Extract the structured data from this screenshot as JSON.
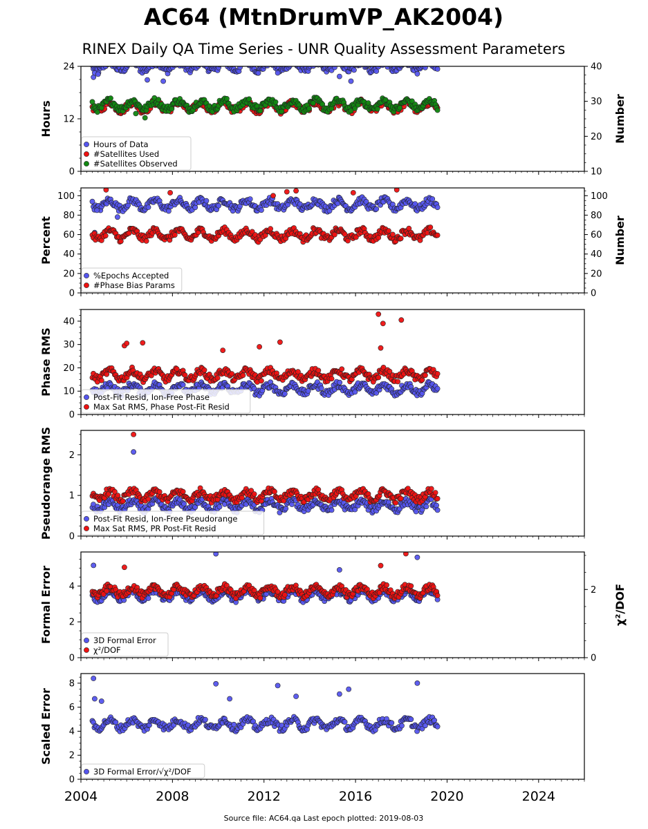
{
  "title": "AC64 (MtnDrumVP_AK2004)",
  "subtitle": "RINEX Daily QA Time Series - UNR Quality Assessment Parameters",
  "footer": "Source file: AC64.qa Last epoch plotted: 2019-08-03",
  "x_axis": {
    "range": [
      2004,
      2026
    ],
    "ticks": [
      "2004",
      "2008",
      "2012",
      "2016",
      "2020",
      "2024"
    ],
    "data_start": 2004.5,
    "data_end": 2019.58
  },
  "colors": {
    "blue": "#5555ee",
    "red": "#ee1111",
    "green": "#118811"
  },
  "chart_data": [
    {
      "type": "scatter",
      "ylabel": "Hours",
      "ylim": [
        0,
        24
      ],
      "yticks": [
        "0",
        "12",
        "24"
      ],
      "ylabel_right": "Number",
      "ylim_right": [
        10,
        40
      ],
      "yticks_right": [
        "10",
        "20",
        "30",
        "40"
      ],
      "legend": "lower-left",
      "series": [
        {
          "name": "Hours of Data",
          "axis": "left",
          "typical": 24,
          "outliers": [
            [
              2004.55,
              21.5
            ],
            [
              2004.6,
              22.5
            ],
            [
              2004.75,
              22.2
            ],
            [
              2006.9,
              20.9
            ],
            [
              2007.6,
              20.6
            ],
            [
              2012.6,
              22.5
            ],
            [
              2015.3,
              21.7
            ],
            [
              2015.8,
              20.6
            ],
            [
              2018.7,
              22.3
            ]
          ]
        },
        {
          "name": "#Satellites Used",
          "axis": "right",
          "typical": 28.5,
          "outliers": []
        },
        {
          "name": "#Satellites Observed",
          "axis": "right",
          "typical": 29,
          "outliers": [
            [
              2006.8,
              25.3
            ],
            [
              2006.4,
              26.5
            ]
          ]
        }
      ]
    },
    {
      "type": "scatter",
      "ylabel": "Percent",
      "ylim": [
        0,
        108
      ],
      "yticks": [
        "0",
        "20",
        "40",
        "60",
        "80",
        "100"
      ],
      "ylabel_right": "Number",
      "ylim_right": [
        0,
        108
      ],
      "yticks_right": [
        "0",
        "20",
        "40",
        "60",
        "80",
        "100"
      ],
      "legend": "lower-left",
      "series": [
        {
          "name": "%Epochs Accepted",
          "axis": "left",
          "typical": 91,
          "outliers": [
            [
              2004.6,
              62
            ],
            [
              2004.7,
              85
            ],
            [
              2005.6,
              78
            ]
          ]
        },
        {
          "name": "#Phase Bias Params",
          "axis": "right",
          "typical": 60,
          "outliers": [
            [
              2005.1,
              106
            ],
            [
              2007.9,
              103
            ],
            [
              2013.0,
              104
            ],
            [
              2013.4,
              105
            ],
            [
              2015.9,
              103
            ],
            [
              2017.8,
              106
            ],
            [
              2012.4,
              100
            ]
          ]
        }
      ]
    },
    {
      "type": "scatter",
      "ylabel": "Phase RMS",
      "ylim": [
        0,
        45
      ],
      "yticks": [
        "0",
        "10",
        "20",
        "30",
        "40"
      ],
      "legend": "lower-left",
      "series": [
        {
          "name": "Post-Fit Resid, Ion-Free Phase",
          "axis": "left",
          "typical": 11,
          "outliers": []
        },
        {
          "name": "Max Sat RMS, Phase Post-Fit Resid",
          "axis": "left",
          "typical": 17,
          "outliers": [
            [
              2005.9,
              29.5
            ],
            [
              2006.0,
              30.5
            ],
            [
              2006.7,
              30.7
            ],
            [
              2010.2,
              27.5
            ],
            [
              2012.7,
              31
            ],
            [
              2017.0,
              43
            ],
            [
              2017.2,
              39
            ],
            [
              2017.1,
              28.5
            ],
            [
              2018.0,
              40.5
            ],
            [
              2011.8,
              29
            ]
          ]
        }
      ]
    },
    {
      "type": "scatter",
      "ylabel": "Pseudorange RMS",
      "ylim": [
        0,
        2.6
      ],
      "yticks": [
        "0",
        "1",
        "2"
      ],
      "legend": "lower-left",
      "series": [
        {
          "name": "Post-Fit Resid, Ion-Free Pseudorange",
          "axis": "left",
          "typical": 0.75,
          "outliers": [
            [
              2006.3,
              2.07
            ]
          ]
        },
        {
          "name": "Max Sat RMS, PR Post-Fit Resid",
          "axis": "left",
          "typical": 1.0,
          "outliers": [
            [
              2006.3,
              2.5
            ]
          ]
        }
      ]
    },
    {
      "type": "scatter",
      "ylabel": "Formal Error",
      "ylim": [
        0,
        5.9
      ],
      "yticks": [
        "0",
        "2",
        "4"
      ],
      "ylabel_right": "χ²/DOF",
      "ylim_right": [
        0,
        3.1
      ],
      "yticks_right": [
        "0",
        "2"
      ],
      "legend": "lower-left",
      "series": [
        {
          "name": "3D Formal Error",
          "axis": "left",
          "typical": 3.5,
          "outliers": [
            [
              2004.55,
              5.15
            ],
            [
              2009.9,
              5.8
            ],
            [
              2015.3,
              4.9
            ],
            [
              2018.7,
              5.6
            ]
          ]
        },
        {
          "name": "χ²/DOF",
          "axis": "right",
          "typical": 1.95,
          "outliers": [
            [
              2018.2,
              3.05
            ],
            [
              2017.1,
              2.7
            ],
            [
              2005.9,
              2.65
            ]
          ]
        }
      ]
    },
    {
      "type": "scatter",
      "ylabel": "Scaled Error",
      "ylim": [
        0,
        8.8
      ],
      "yticks": [
        "0",
        "2",
        "4",
        "6",
        "8"
      ],
      "legend": "lower-left",
      "series": [
        {
          "name": "3D Formal Error/√χ²/DOF",
          "axis": "left",
          "typical": 4.6,
          "outliers": [
            [
              2004.55,
              8.4
            ],
            [
              2004.6,
              6.7
            ],
            [
              2004.9,
              6.5
            ],
            [
              2009.9,
              7.95
            ],
            [
              2010.5,
              6.7
            ],
            [
              2012.6,
              7.8
            ],
            [
              2013.4,
              6.9
            ],
            [
              2015.3,
              7.1
            ],
            [
              2015.7,
              7.5
            ],
            [
              2018.7,
              8.0
            ]
          ]
        }
      ]
    }
  ]
}
